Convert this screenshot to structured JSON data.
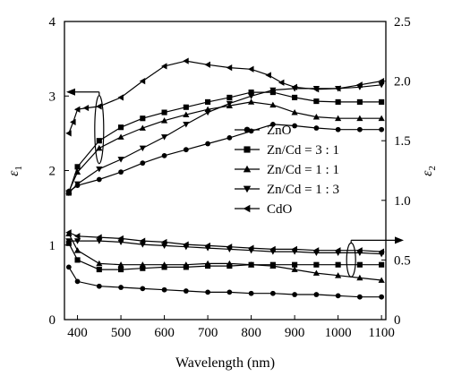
{
  "chart_data": {
    "type": "line",
    "title": "",
    "xlabel": "Wavelength (nm)",
    "ylabel_left": "ε",
    "ylabel_left_sub": "1",
    "ylabel_right": "ε",
    "ylabel_right_sub": "2",
    "xlim": [
      370,
      1110
    ],
    "ylim_left": [
      0,
      4
    ],
    "ylim_right": [
      0,
      2.5
    ],
    "x_ticks": [
      400,
      500,
      600,
      700,
      800,
      900,
      1000,
      1100
    ],
    "y_ticks_left": [
      0,
      1,
      2,
      3,
      4
    ],
    "y_ticks_right": [
      0,
      0.5,
      1.0,
      1.5,
      2.0,
      2.5
    ],
    "x_tick_labels": [
      "400",
      "500",
      "600",
      "700",
      "800",
      "900",
      "1000",
      "1100"
    ],
    "y_tick_labels_left": [
      "0",
      "1",
      "2",
      "3",
      "4"
    ],
    "y_tick_labels_right": [
      "0",
      "0.5",
      "1.0",
      "1.5",
      "2.0",
      "2.5"
    ],
    "grid": false,
    "legend_position": "center-right",
    "series": [
      {
        "name": "ZnO",
        "marker": "circle",
        "axis": "left",
        "group": "epsilon1",
        "x": [
          380,
          400,
          450,
          500,
          550,
          600,
          650,
          700,
          750,
          800,
          850,
          900,
          950,
          1000,
          1050,
          1100
        ],
        "y": [
          1.72,
          1.8,
          1.88,
          1.98,
          2.1,
          2.2,
          2.28,
          2.36,
          2.44,
          2.53,
          2.62,
          2.6,
          2.57,
          2.55,
          2.55,
          2.55
        ]
      },
      {
        "name": "Zn/Cd = 3 : 1",
        "marker": "square",
        "axis": "left",
        "group": "epsilon1",
        "x": [
          380,
          400,
          450,
          500,
          550,
          600,
          650,
          700,
          750,
          800,
          850,
          900,
          950,
          1000,
          1050,
          1100
        ],
        "y": [
          1.7,
          2.05,
          2.4,
          2.58,
          2.7,
          2.78,
          2.85,
          2.92,
          2.98,
          3.05,
          3.05,
          2.98,
          2.93,
          2.92,
          2.92,
          2.92
        ]
      },
      {
        "name": "Zn/Cd = 1 : 1",
        "marker": "triangle-up",
        "axis": "left",
        "group": "epsilon1",
        "x": [
          380,
          400,
          450,
          500,
          550,
          600,
          650,
          700,
          750,
          800,
          850,
          900,
          950,
          1000,
          1050,
          1100
        ],
        "y": [
          1.72,
          1.98,
          2.3,
          2.45,
          2.57,
          2.67,
          2.75,
          2.82,
          2.87,
          2.92,
          2.88,
          2.78,
          2.72,
          2.7,
          2.7,
          2.7
        ]
      },
      {
        "name": "Zn/Cd = 1 : 3",
        "marker": "triangle-down",
        "axis": "left",
        "group": "epsilon1",
        "x": [
          380,
          400,
          450,
          500,
          550,
          600,
          650,
          700,
          750,
          800,
          850,
          900,
          950,
          1000,
          1050,
          1100
        ],
        "y": [
          1.7,
          1.82,
          2.02,
          2.15,
          2.3,
          2.45,
          2.62,
          2.78,
          2.9,
          3.0,
          3.08,
          3.1,
          3.1,
          3.1,
          3.12,
          3.15
        ]
      },
      {
        "name": "CdO",
        "marker": "triangle-left",
        "axis": "left",
        "group": "epsilon1",
        "x": [
          380,
          390,
          400,
          420,
          450,
          500,
          550,
          600,
          650,
          700,
          750,
          800,
          840,
          870,
          900,
          950,
          1000,
          1050,
          1100
        ],
        "y": [
          2.5,
          2.65,
          2.82,
          2.84,
          2.86,
          2.98,
          3.2,
          3.4,
          3.47,
          3.42,
          3.38,
          3.36,
          3.28,
          3.18,
          3.12,
          3.09,
          3.1,
          3.15,
          3.2
        ]
      },
      {
        "name": "ZnO",
        "marker": "circle",
        "axis": "right",
        "group": "epsilon2",
        "x": [
          380,
          400,
          450,
          500,
          550,
          600,
          650,
          700,
          750,
          800,
          850,
          900,
          950,
          1000,
          1050,
          1100
        ],
        "y": [
          0.44,
          0.32,
          0.28,
          0.27,
          0.26,
          0.25,
          0.24,
          0.23,
          0.23,
          0.22,
          0.22,
          0.21,
          0.21,
          0.2,
          0.19,
          0.19
        ]
      },
      {
        "name": "Zn/Cd = 3 : 1",
        "marker": "square",
        "axis": "right",
        "group": "epsilon2",
        "x": [
          380,
          400,
          450,
          500,
          550,
          600,
          650,
          700,
          750,
          800,
          850,
          900,
          950,
          1000,
          1050,
          1100
        ],
        "y": [
          0.64,
          0.5,
          0.42,
          0.42,
          0.43,
          0.44,
          0.44,
          0.45,
          0.45,
          0.46,
          0.46,
          0.46,
          0.46,
          0.46,
          0.46,
          0.46
        ]
      },
      {
        "name": "Zn/Cd = 1 : 1",
        "marker": "triangle-up",
        "axis": "right",
        "group": "epsilon2",
        "x": [
          380,
          400,
          450,
          500,
          550,
          600,
          650,
          700,
          750,
          800,
          850,
          900,
          950,
          1000,
          1050,
          1100
        ],
        "y": [
          0.72,
          0.58,
          0.47,
          0.46,
          0.46,
          0.46,
          0.46,
          0.47,
          0.47,
          0.46,
          0.45,
          0.42,
          0.39,
          0.37,
          0.35,
          0.33
        ]
      },
      {
        "name": "Zn/Cd = 1 : 3",
        "marker": "triangle-down",
        "axis": "right",
        "group": "epsilon2",
        "x": [
          380,
          400,
          450,
          500,
          550,
          600,
          650,
          700,
          750,
          800,
          850,
          900,
          950,
          1000,
          1050,
          1100
        ],
        "y": [
          0.66,
          0.66,
          0.66,
          0.65,
          0.63,
          0.62,
          0.61,
          0.6,
          0.59,
          0.58,
          0.57,
          0.57,
          0.56,
          0.56,
          0.56,
          0.55
        ]
      },
      {
        "name": "CdO",
        "marker": "triangle-left",
        "axis": "right",
        "group": "epsilon2",
        "x": [
          380,
          400,
          450,
          500,
          550,
          600,
          650,
          700,
          750,
          800,
          850,
          900,
          950,
          1000,
          1050,
          1100
        ],
        "y": [
          0.73,
          0.7,
          0.69,
          0.68,
          0.66,
          0.65,
          0.63,
          0.62,
          0.61,
          0.6,
          0.59,
          0.59,
          0.58,
          0.58,
          0.58,
          0.57
        ]
      }
    ],
    "annotations": [
      {
        "kind": "axis-pointer",
        "text": "",
        "target_axis": "left",
        "group": "epsilon1",
        "x": 450,
        "y": 2.55,
        "direction": "left"
      },
      {
        "kind": "axis-pointer",
        "text": "",
        "target_axis": "right",
        "group": "epsilon2",
        "x": 1030,
        "y": 0.5,
        "direction": "right"
      }
    ],
    "colors": {
      "line": "#000000",
      "background": "#ffffff"
    }
  }
}
